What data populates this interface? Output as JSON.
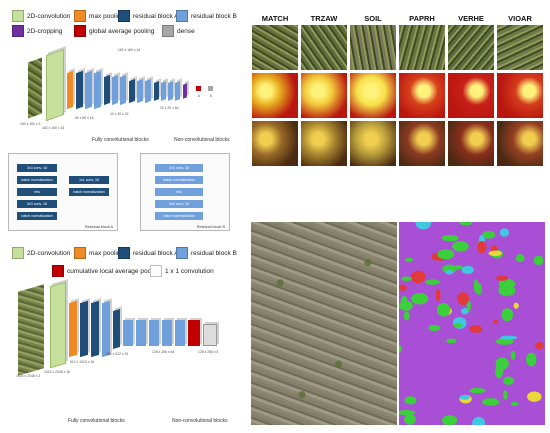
{
  "legend_top": {
    "items": [
      {
        "label": "2D-convolution",
        "color": "#c5e09b"
      },
      {
        "label": "max pooling",
        "color": "#f08a24"
      },
      {
        "label": "residual block A",
        "color": "#1f4e79"
      },
      {
        "label": "residual block B",
        "color": "#6fa0dc"
      },
      {
        "label": "2D-cropping",
        "color": "#7030a0"
      },
      {
        "label": "global average pooling",
        "color": "#c00000"
      },
      {
        "label": "dense",
        "color": "#a6a6a6"
      }
    ]
  },
  "network_top": {
    "section_fully": "Fully convolutional blocks",
    "section_non": "Non-convolutional blocks",
    "dims": [
      "160 x 160 x 3",
      "160 x 160 x 16",
      "160 x 160 x 16",
      "80 x 80 x 16",
      "40 x 40 x 32",
      "20 x 20 x 64",
      "6",
      "6"
    ]
  },
  "residual_a": {
    "title": "Residual block A",
    "left": [
      "3x3 conv, 16",
      "batch normalization",
      "relu",
      "3x3 conv, 16",
      "batch normalization"
    ],
    "right": [
      "1x1 conv, 16",
      "batch normalization"
    ]
  },
  "residual_b": {
    "title": "Residual block B",
    "items": [
      "3x3 conv, 16",
      "batch normalization",
      "relu",
      "3x3 conv, 16",
      "batch normalization"
    ]
  },
  "legend_bottom": {
    "items": [
      {
        "label": "2D-convolution",
        "color": "#c5e09b"
      },
      {
        "label": "max pooling",
        "color": "#f08a24"
      },
      {
        "label": "residual block A",
        "color": "#1f4e79"
      },
      {
        "label": "residual block B",
        "color": "#6fa0dc"
      },
      {
        "label": "cumulative local average pooling",
        "color": "#c00000"
      },
      {
        "label": "1 x 1 convolution",
        "color": "#ffffff"
      }
    ]
  },
  "network_bottom": {
    "section_fully": "Fully convolutional blocks",
    "section_non": "Non-convolutional blocks",
    "dims": [
      "1024 x 2048 x 3",
      "1024 x 2048 x 16",
      "512 x 1024 x 16",
      "256 x 512 x 32",
      "128 x 256 x 64",
      "128 x 256 x 6"
    ]
  },
  "species_grid": {
    "columns": [
      "MATCH",
      "TRZAW",
      "SOIL",
      "PAPRH",
      "VERHE",
      "VIOAR"
    ],
    "row_colors": [
      [
        "#6b6e3e",
        "#5f6b3a",
        "#7a7a5a",
        "#6a7440",
        "#5b6a3a",
        "#6f7a48"
      ],
      [
        "#e8b020",
        "#f2c93a",
        "#f7e24a",
        "#d8401c",
        "#c8201a",
        "#d43a1c"
      ],
      [
        "#9a6a28",
        "#a8862e",
        "#b49a3a",
        "#8c3a22",
        "#8a2e1e",
        "#964024"
      ]
    ]
  },
  "segmentation": {
    "legend_colors": [
      "#a84fd6",
      "#3ccf3c",
      "#e23a3a",
      "#40c8e0",
      "#e8d838"
    ]
  }
}
